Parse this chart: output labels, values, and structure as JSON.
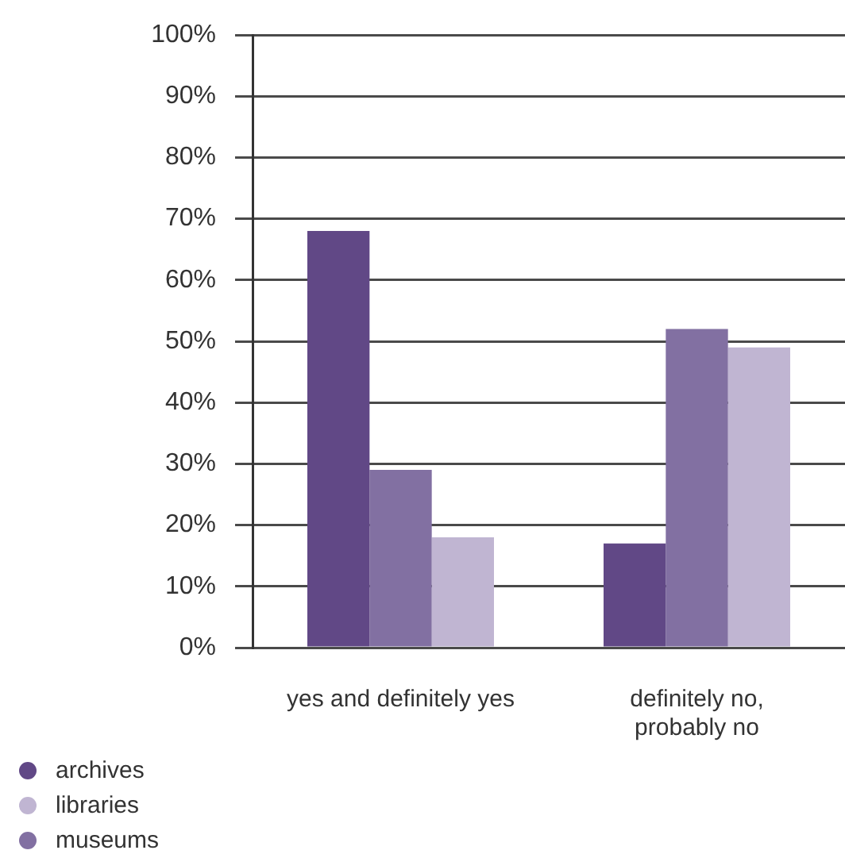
{
  "chart_data": {
    "type": "bar",
    "categories": [
      "yes and definitely yes",
      "definitely no, probably no"
    ],
    "series": [
      {
        "name": "archives",
        "color": "#614886",
        "values": [
          68,
          17
        ]
      },
      {
        "name": "museums",
        "color": "#8270a2",
        "values": [
          29,
          52
        ]
      },
      {
        "name": "libraries",
        "color": "#c0b5d2",
        "values": [
          18,
          49
        ]
      }
    ],
    "ylim": [
      0,
      100
    ],
    "yticks": [
      {
        "value": 0,
        "label": "0%"
      },
      {
        "value": 10,
        "label": "10%"
      },
      {
        "value": 20,
        "label": "20%"
      },
      {
        "value": 30,
        "label": "30%"
      },
      {
        "value": 40,
        "label": "40%"
      },
      {
        "value": 50,
        "label": "50%"
      },
      {
        "value": 60,
        "label": "60%"
      },
      {
        "value": 70,
        "label": "70%"
      },
      {
        "value": 80,
        "label": "80%"
      },
      {
        "value": 90,
        "label": "90%"
      },
      {
        "value": 100,
        "label": "100%"
      }
    ],
    "grid": "y",
    "legend": "bottom left"
  }
}
